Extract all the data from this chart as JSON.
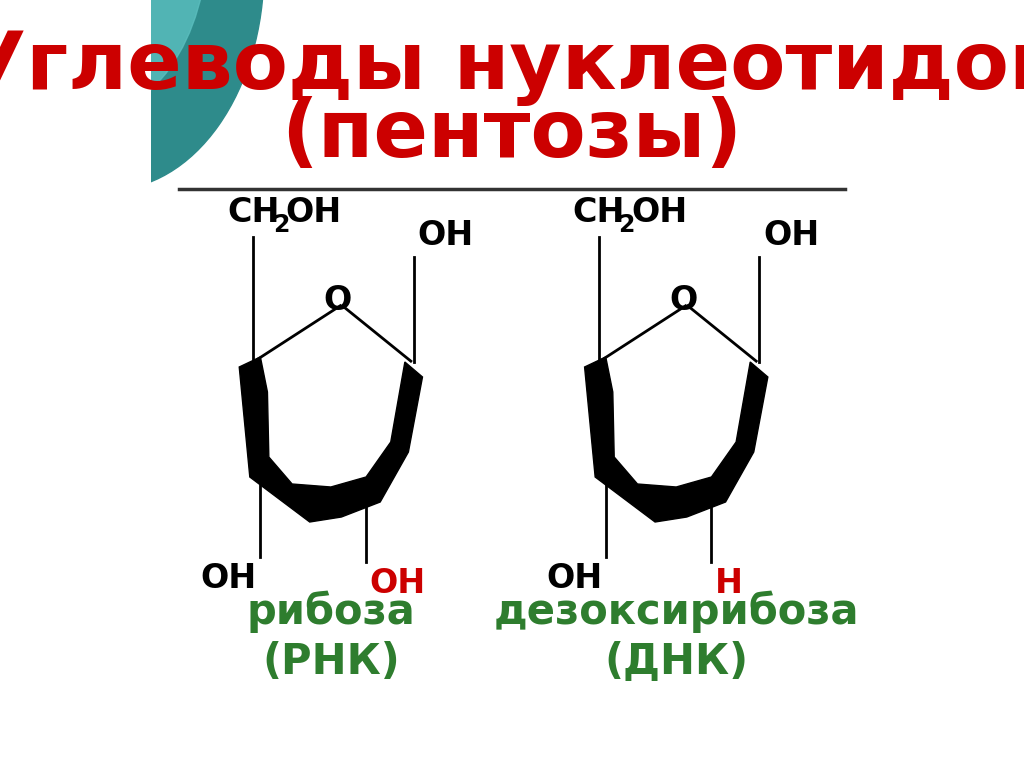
{
  "title_line1": "Углеводы нуклеотидов",
  "title_line2": "(пентозы)",
  "title_color": "#cc0000",
  "bg_color": "#ffffff",
  "teal_dark": "#2e8b8b",
  "teal_light": "#5bbfbf",
  "divider_color": "#333333",
  "highlight_red": "#cc0000",
  "highlight_green": "#2e7d2e",
  "label1_line1": "рибоза",
  "label1_line2": "(РНК)",
  "label2_line1": "дезоксирибоза",
  "label2_line2": "(ДНК)"
}
